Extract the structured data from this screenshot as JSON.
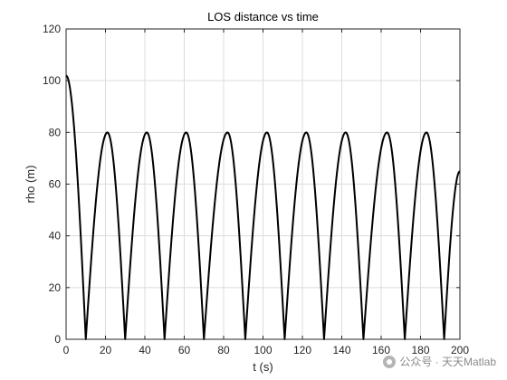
{
  "chart_data": {
    "type": "line",
    "title": "LOS distance vs time",
    "xlabel": "t (s)",
    "ylabel": "rho (m)",
    "xlim": [
      0,
      200
    ],
    "ylim": [
      0,
      120
    ],
    "xticks": [
      0,
      20,
      40,
      60,
      80,
      100,
      120,
      140,
      160,
      180,
      200
    ],
    "yticks": [
      0,
      20,
      40,
      60,
      80,
      100,
      120
    ],
    "grid": true,
    "series": [
      {
        "color": "#000000",
        "x": [
          0,
          10,
          21,
          30,
          41,
          50,
          61,
          70,
          82,
          91,
          102,
          111,
          122,
          131,
          142,
          151,
          163,
          172,
          183,
          192,
          200
        ],
        "y": [
          102,
          0,
          80,
          0,
          80,
          0,
          80,
          0,
          80,
          0,
          80,
          0,
          80,
          0,
          80,
          0,
          80,
          0,
          80,
          0,
          65
        ]
      }
    ]
  },
  "watermark": {
    "text": "公众号 · 天天Matlab",
    "icon": "wechat-icon"
  }
}
